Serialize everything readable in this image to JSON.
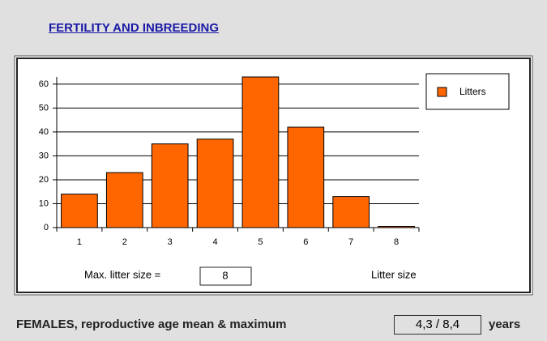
{
  "header": {
    "title": "FERTILITY AND INBREEDING"
  },
  "chart_data": {
    "type": "bar",
    "categories": [
      "1",
      "2",
      "3",
      "4",
      "5",
      "6",
      "7",
      "8"
    ],
    "series": [
      {
        "name": "Litters",
        "color": "#ff6600",
        "values": [
          14,
          23,
          35,
          37,
          63,
          42,
          13,
          0.5
        ]
      }
    ],
    "ylim": [
      0,
      63
    ],
    "yticks": [
      0,
      10,
      20,
      30,
      40,
      50,
      60
    ],
    "grid": true,
    "x_label": "Litter size",
    "legend": "top-right"
  },
  "max_litter": {
    "label": "Max. litter size =",
    "value": "8"
  },
  "footer": {
    "label": "FEMALES, reproductive age mean & maximum",
    "value": "4,3 / 8,4",
    "unit": "years"
  }
}
